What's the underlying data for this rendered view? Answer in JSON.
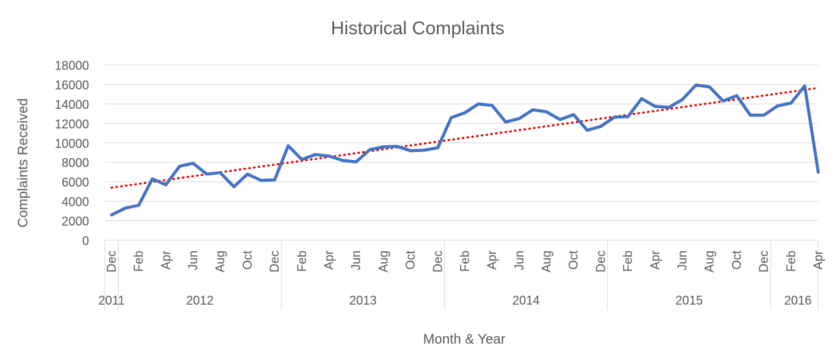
{
  "chart_data": {
    "type": "line",
    "title": "Historical Complaints",
    "xlabel": "Month & Year",
    "ylabel": "Complaints Received",
    "ylim": [
      0,
      18000
    ],
    "yticks": [
      0,
      2000,
      4000,
      6000,
      8000,
      10000,
      12000,
      14000,
      16000,
      18000
    ],
    "grid": true,
    "legend": "none",
    "colors": {
      "series": "#4472C4",
      "trendline": "#E00000",
      "grid": "#D9D9D9",
      "text": "#595959"
    },
    "month_tick_labels": [
      "Dec",
      "Feb",
      "Apr",
      "Jun",
      "Aug",
      "Oct",
      "Dec",
      "Feb",
      "Apr",
      "Jun",
      "Aug",
      "Oct",
      "Dec",
      "Feb",
      "Apr",
      "Jun",
      "Aug",
      "Oct",
      "Dec",
      "Feb",
      "Apr",
      "Jun",
      "Aug",
      "Oct",
      "Dec",
      "Feb",
      "Apr"
    ],
    "year_groups": [
      {
        "label": "2011",
        "months": 1
      },
      {
        "label": "2012",
        "months": 12
      },
      {
        "label": "2013",
        "months": 12
      },
      {
        "label": "2014",
        "months": 12
      },
      {
        "label": "2015",
        "months": 12
      },
      {
        "label": "2016",
        "months": 4
      }
    ],
    "series": [
      {
        "x": [
          "2011-12",
          "2012-01",
          "2012-02",
          "2012-03",
          "2012-04",
          "2012-05",
          "2012-06",
          "2012-07",
          "2012-08",
          "2012-09",
          "2012-10",
          "2012-11",
          "2012-12",
          "2013-01",
          "2013-02",
          "2013-03",
          "2013-04",
          "2013-05",
          "2013-06",
          "2013-07",
          "2013-08",
          "2013-09",
          "2013-10",
          "2013-11",
          "2013-12",
          "2014-01",
          "2014-02",
          "2014-03",
          "2014-04",
          "2014-05",
          "2014-06",
          "2014-07",
          "2014-08",
          "2014-09",
          "2014-10",
          "2014-11",
          "2014-12",
          "2015-01",
          "2015-02",
          "2015-03",
          "2015-04",
          "2015-05",
          "2015-06",
          "2015-07",
          "2015-08",
          "2015-09",
          "2015-10",
          "2015-11",
          "2015-12",
          "2016-01",
          "2016-02",
          "2016-03",
          "2016-04"
        ],
        "values": [
          2600,
          3300,
          3600,
          6300,
          5700,
          7600,
          7900,
          6800,
          6950,
          5500,
          6800,
          6150,
          6200,
          9700,
          8300,
          8800,
          8650,
          8200,
          8050,
          9300,
          9600,
          9650,
          9200,
          9250,
          9500,
          12600,
          13100,
          14000,
          13850,
          12150,
          12500,
          13400,
          13200,
          12400,
          12900,
          11300,
          11700,
          12650,
          12700,
          14550,
          13750,
          13650,
          14450,
          15950,
          15750,
          14300,
          14850,
          12850,
          12850,
          13800,
          14100,
          15850,
          7000
        ]
      }
    ],
    "trendline": {
      "type": "linear",
      "start": 5400,
      "end": 15650,
      "style": "dotted"
    }
  }
}
